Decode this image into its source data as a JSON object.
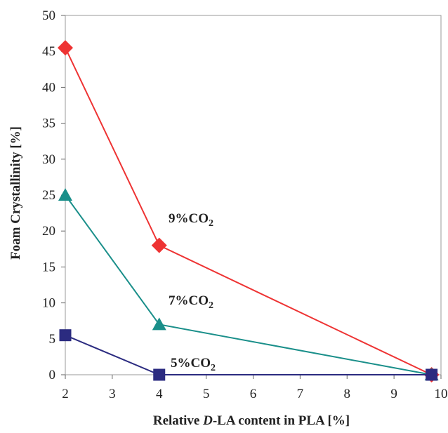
{
  "chart_data": {
    "type": "line",
    "xlabel": {
      "prefix": "Relative ",
      "italic": "D",
      "suffix": "-LA content in PLA [%]"
    },
    "ylabel": "Foam Crystallinity [%]",
    "xlim": [
      2,
      10
    ],
    "ylim": [
      0,
      50
    ],
    "xticks": [
      2,
      3,
      4,
      5,
      6,
      7,
      8,
      9,
      10
    ],
    "yticks": [
      0,
      5,
      10,
      15,
      20,
      25,
      30,
      35,
      40,
      45,
      50
    ],
    "grid": false,
    "series": [
      {
        "name": "9%CO2",
        "name_main": "9%CO",
        "name_sub": "2",
        "color": "#ee3333",
        "marker": "diamond",
        "x": [
          2,
          4,
          9.8
        ],
        "y": [
          45.5,
          18,
          0
        ]
      },
      {
        "name": "7%CO2",
        "name_main": "7%CO",
        "name_sub": "2",
        "color": "#1a8f8a",
        "marker": "triangle",
        "x": [
          2,
          4,
          9.8
        ],
        "y": [
          25,
          7,
          0
        ]
      },
      {
        "name": "5%CO2",
        "name_main": "5%CO",
        "name_sub": "2",
        "color": "#2b2b80",
        "marker": "square",
        "x": [
          2,
          4,
          9.8
        ],
        "y": [
          5.5,
          0,
          0
        ]
      }
    ]
  }
}
